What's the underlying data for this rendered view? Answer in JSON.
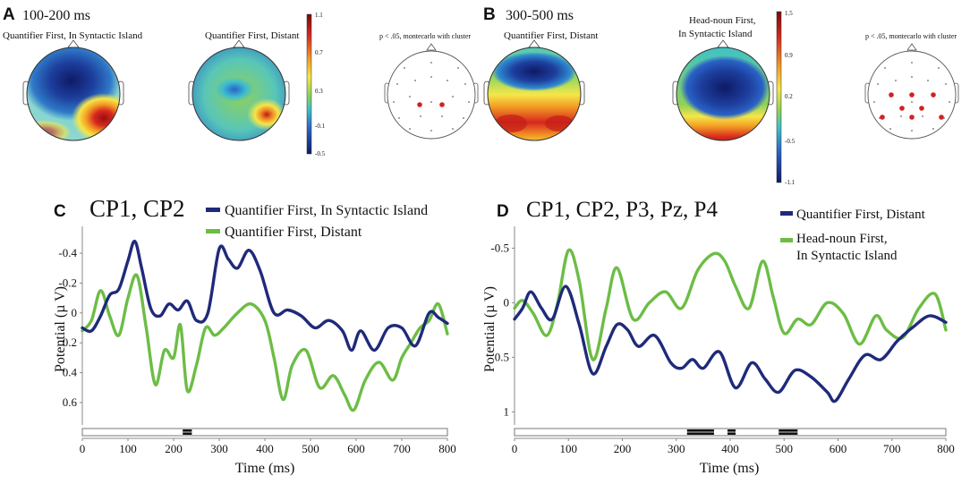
{
  "panel_a": {
    "letter": "A",
    "time_window": "100-200 ms",
    "map1_title": "Quantifier First, In Syntactic Island",
    "map2_title": "Quantifier First, Distant",
    "sig_label": "p < .05, montecarlo with cluster",
    "colorbar_ticks": [
      "1.1",
      "0.7",
      "0.3",
      "-0.1",
      "-0.5"
    ]
  },
  "panel_b": {
    "letter": "B",
    "time_window": "300-500 ms",
    "map1_title": "Quantifier First, Distant",
    "map2_title_line1": "Head-noun First,",
    "map2_title_line2": "In Syntactic Island",
    "sig_label": "p < .05, montecarlo with cluster",
    "colorbar_ticks": [
      "1.5",
      "0.9",
      "0.2",
      "-0.5",
      "-1.1"
    ]
  },
  "colors": {
    "blue": "#1f2a7a",
    "green": "#6cbd45",
    "sig_dot": "#d42020"
  },
  "chart_data": [
    {
      "panel": "C",
      "type": "line",
      "title": "CP1, CP2",
      "xlabel": "Time (ms)",
      "ylabel": "Potential (µ V)",
      "x_ticks": [
        "0",
        "100",
        "200",
        "300",
        "400",
        "500",
        "600",
        "700",
        "800"
      ],
      "y_ticks": [
        "-0.4",
        "-0.2",
        "0",
        "0.2",
        "0.4",
        "0.6"
      ],
      "ylim": [
        -0.58,
        0.75
      ],
      "y_inverted": true,
      "sig_windows": [
        [
          220,
          240
        ]
      ],
      "series": [
        {
          "name": "Quantifier First, In Syntactic Island",
          "color": "#1f2a7a",
          "x": [
            0,
            20,
            40,
            60,
            80,
            100,
            115,
            130,
            150,
            170,
            190,
            210,
            230,
            250,
            275,
            300,
            320,
            340,
            365,
            390,
            420,
            450,
            480,
            510,
            540,
            570,
            590,
            610,
            640,
            670,
            700,
            730,
            760,
            780,
            800
          ],
          "y": [
            0.1,
            0.12,
            0.02,
            -0.12,
            -0.16,
            -0.35,
            -0.48,
            -0.3,
            -0.03,
            0.02,
            -0.06,
            -0.02,
            -0.08,
            0.05,
            0.0,
            -0.43,
            -0.36,
            -0.3,
            -0.42,
            -0.28,
            0.0,
            -0.02,
            0.02,
            0.1,
            0.05,
            0.12,
            0.25,
            0.12,
            0.25,
            0.1,
            0.1,
            0.22,
            0.0,
            0.03,
            0.07
          ]
        },
        {
          "name": "Quantifier First, Distant",
          "color": "#6cbd45",
          "x": [
            0,
            20,
            40,
            60,
            80,
            100,
            120,
            140,
            160,
            180,
            200,
            215,
            230,
            250,
            270,
            290,
            310,
            340,
            370,
            400,
            420,
            440,
            460,
            490,
            520,
            550,
            575,
            595,
            620,
            650,
            680,
            700,
            720,
            740,
            760,
            780,
            800
          ],
          "y": [
            0.12,
            0.05,
            -0.15,
            0.02,
            0.15,
            -0.1,
            -0.25,
            0.1,
            0.48,
            0.25,
            0.3,
            0.08,
            0.52,
            0.35,
            0.1,
            0.15,
            0.1,
            0.0,
            -0.06,
            0.05,
            0.3,
            0.58,
            0.35,
            0.25,
            0.5,
            0.42,
            0.55,
            0.65,
            0.45,
            0.33,
            0.45,
            0.3,
            0.2,
            0.1,
            0.05,
            -0.06,
            0.14
          ]
        }
      ]
    },
    {
      "panel": "D",
      "type": "line",
      "title": "CP1, CP2, P3, Pz, P4",
      "xlabel": "Time (ms)",
      "ylabel": "Potential (µ V)",
      "x_ticks": [
        "0",
        "100",
        "200",
        "300",
        "400",
        "500",
        "600",
        "700",
        "800"
      ],
      "y_ticks": [
        "-0.5",
        "0",
        "0.5",
        "1"
      ],
      "ylim": [
        -0.7,
        1.12
      ],
      "y_inverted": true,
      "sig_windows": [
        [
          320,
          370
        ],
        [
          395,
          410
        ],
        [
          490,
          525
        ]
      ],
      "series": [
        {
          "name": "Quantifier First, Distant",
          "color": "#1f2a7a",
          "x": [
            0,
            15,
            30,
            50,
            70,
            95,
            120,
            145,
            170,
            190,
            210,
            230,
            260,
            290,
            310,
            330,
            350,
            380,
            410,
            440,
            465,
            490,
            520,
            550,
            580,
            595,
            620,
            650,
            680,
            710,
            740,
            770,
            800
          ],
          "y": [
            0.15,
            0.05,
            -0.1,
            0.05,
            0.15,
            -0.15,
            0.2,
            0.65,
            0.4,
            0.2,
            0.25,
            0.4,
            0.3,
            0.55,
            0.6,
            0.52,
            0.6,
            0.45,
            0.78,
            0.55,
            0.7,
            0.82,
            0.62,
            0.68,
            0.82,
            0.9,
            0.7,
            0.48,
            0.52,
            0.35,
            0.22,
            0.12,
            0.18
          ]
        },
        {
          "name": "Head-noun First, In Syntactic Island",
          "color": "#6cbd45",
          "x": [
            0,
            15,
            35,
            60,
            80,
            100,
            120,
            145,
            170,
            190,
            220,
            250,
            280,
            310,
            340,
            370,
            390,
            410,
            435,
            460,
            480,
            500,
            525,
            550,
            580,
            610,
            640,
            670,
            690,
            720,
            750,
            780,
            800
          ],
          "y": [
            0.05,
            -0.02,
            0.1,
            0.3,
            0.0,
            -0.48,
            -0.2,
            0.52,
            0.05,
            -0.32,
            0.15,
            0.0,
            -0.1,
            0.05,
            -0.3,
            -0.45,
            -0.38,
            -0.15,
            0.05,
            -0.38,
            -0.05,
            0.28,
            0.15,
            0.2,
            0.0,
            0.1,
            0.38,
            0.12,
            0.25,
            0.32,
            0.05,
            -0.08,
            0.25
          ]
        }
      ]
    }
  ]
}
